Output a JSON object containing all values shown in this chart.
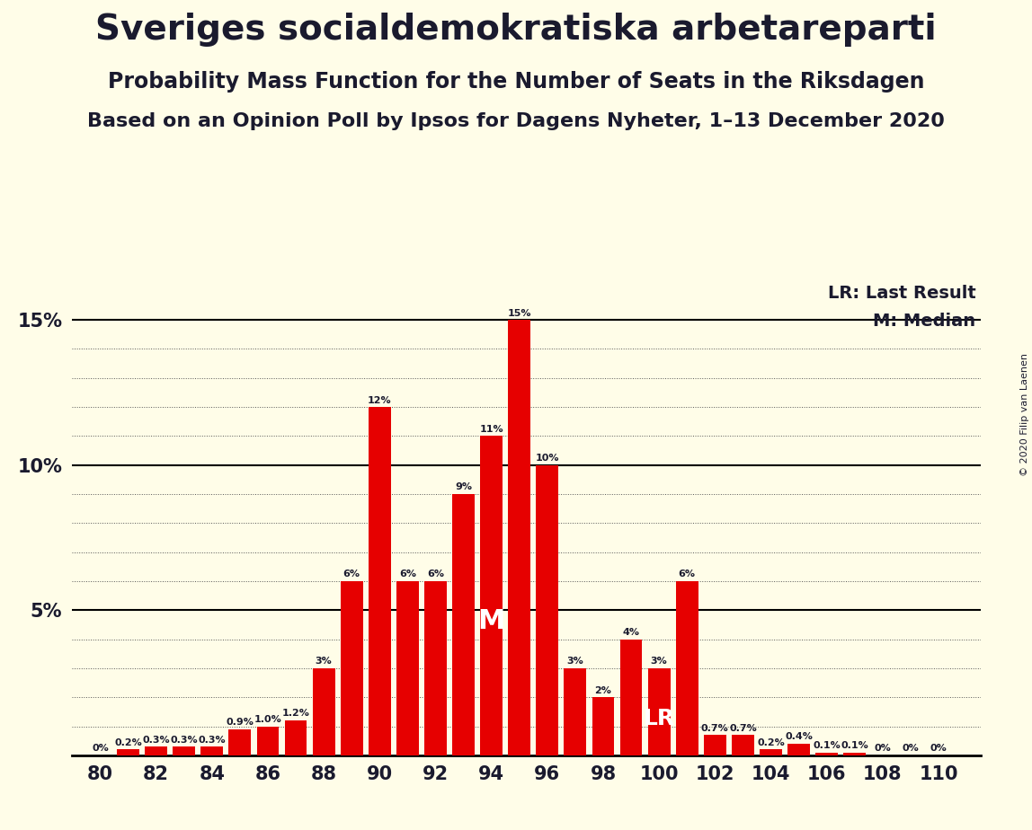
{
  "title": "Sveriges socialdemokratiska arbetareparti",
  "subtitle1": "Probability Mass Function for the Number of Seats in the Riksdagen",
  "subtitle2": "Based on an Opinion Poll by Ipsos for Dagens Nyheter, 1–13 December 2020",
  "copyright": "© 2020 Filip van Laenen",
  "seats": [
    80,
    81,
    82,
    83,
    84,
    85,
    86,
    87,
    88,
    89,
    90,
    91,
    92,
    93,
    94,
    95,
    96,
    97,
    98,
    99,
    100,
    101,
    102,
    103,
    104,
    105,
    106,
    107,
    108,
    109,
    110
  ],
  "probs": [
    0.0,
    0.002,
    0.003,
    0.003,
    0.003,
    0.009,
    0.01,
    0.012,
    0.03,
    0.06,
    0.12,
    0.06,
    0.06,
    0.09,
    0.11,
    0.15,
    0.1,
    0.03,
    0.02,
    0.04,
    0.03,
    0.06,
    0.007,
    0.007,
    0.002,
    0.004,
    0.001,
    0.001,
    0.0,
    0.0,
    0.0
  ],
  "bar_color": "#e60000",
  "bg_color": "#fffde8",
  "text_color": "#1a1a2e",
  "median_seat": 94,
  "last_result_seat": 100,
  "legend_lr": "LR: Last Result",
  "legend_m": "M: Median",
  "ylim": [
    0,
    0.163
  ],
  "yticks": [
    0.0,
    0.05,
    0.1,
    0.15
  ],
  "ytick_labels": [
    "",
    "5%",
    "10%",
    "15%"
  ],
  "bar_labels": {
    "80": "0%",
    "81": "0.2%",
    "82": "0.3%",
    "83": "0.3%",
    "84": "0.3%",
    "85": "0.9%",
    "86": "1.0%",
    "87": "1.2%",
    "88": "3%",
    "89": "6%",
    "90": "12%",
    "91": "6%",
    "92": "6%",
    "93": "9%",
    "94": "11%",
    "95": "15%",
    "96": "10%",
    "97": "3%",
    "98": "2%",
    "99": "4%",
    "100": "3%",
    "101": "6%",
    "102": "0.7%",
    "103": "0.7%",
    "104": "0.2%",
    "105": "0.4%",
    "106": "0.1%",
    "107": "0.1%",
    "108": "0%",
    "109": "0%",
    "110": "0%"
  }
}
